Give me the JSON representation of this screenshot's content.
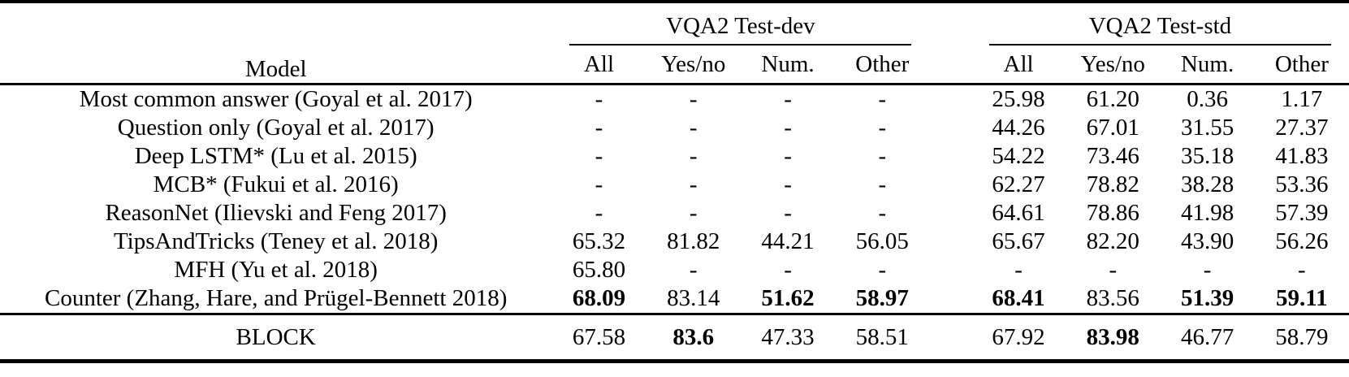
{
  "table": {
    "model_header": "Model",
    "groups": [
      {
        "label": "VQA2 Test-dev",
        "columns": [
          "All",
          "Yes/no",
          "Num.",
          "Other"
        ]
      },
      {
        "label": "VQA2 Test-std",
        "columns": [
          "All",
          "Yes/no",
          "Num.",
          "Other"
        ]
      }
    ],
    "rows": [
      {
        "model": "Most common answer (Goyal et al. 2017)",
        "values": [
          "-",
          "-",
          "-",
          "-",
          "25.98",
          "61.20",
          "0.36",
          "1.17"
        ],
        "bold": [
          false,
          false,
          false,
          false,
          false,
          false,
          false,
          false
        ]
      },
      {
        "model": "Question only (Goyal et al. 2017)",
        "values": [
          "-",
          "-",
          "-",
          "-",
          "44.26",
          "67.01",
          "31.55",
          "27.37"
        ],
        "bold": [
          false,
          false,
          false,
          false,
          false,
          false,
          false,
          false
        ]
      },
      {
        "model": "Deep LSTM* (Lu et al. 2015)",
        "values": [
          "-",
          "-",
          "-",
          "-",
          "54.22",
          "73.46",
          "35.18",
          "41.83"
        ],
        "bold": [
          false,
          false,
          false,
          false,
          false,
          false,
          false,
          false
        ]
      },
      {
        "model": "MCB* (Fukui et al. 2016)",
        "values": [
          "-",
          "-",
          "-",
          "-",
          "62.27",
          "78.82",
          "38.28",
          "53.36"
        ],
        "bold": [
          false,
          false,
          false,
          false,
          false,
          false,
          false,
          false
        ]
      },
      {
        "model": "ReasonNet (Ilievski and Feng 2017)",
        "values": [
          "-",
          "-",
          "-",
          "-",
          "64.61",
          "78.86",
          "41.98",
          "57.39"
        ],
        "bold": [
          false,
          false,
          false,
          false,
          false,
          false,
          false,
          false
        ]
      },
      {
        "model": "TipsAndTricks (Teney et al. 2018)",
        "values": [
          "65.32",
          "81.82",
          "44.21",
          "56.05",
          "65.67",
          "82.20",
          "43.90",
          "56.26"
        ],
        "bold": [
          false,
          false,
          false,
          false,
          false,
          false,
          false,
          false
        ]
      },
      {
        "model": "MFH (Yu et al. 2018)",
        "values": [
          "65.80",
          "-",
          "-",
          "-",
          "-",
          "-",
          "-",
          "-"
        ],
        "bold": [
          false,
          false,
          false,
          false,
          false,
          false,
          false,
          false
        ]
      },
      {
        "model": "Counter (Zhang, Hare, and Prügel-Bennett 2018)",
        "values": [
          "68.09",
          "83.14",
          "51.62",
          "58.97",
          "68.41",
          "83.56",
          "51.39",
          "59.11"
        ],
        "bold": [
          true,
          false,
          true,
          true,
          true,
          false,
          true,
          true
        ]
      }
    ],
    "footer_rows": [
      {
        "model": "BLOCK",
        "values": [
          "67.58",
          "83.6",
          "47.33",
          "58.51",
          "67.92",
          "83.98",
          "46.77",
          "58.79"
        ],
        "bold": [
          false,
          true,
          false,
          false,
          false,
          true,
          false,
          false
        ]
      }
    ]
  },
  "chart_data": {
    "type": "table",
    "title": "VQA2 results comparison",
    "column_groups": [
      "VQA2 Test-dev",
      "VQA2 Test-std"
    ],
    "columns": [
      "Model",
      "Test-dev All",
      "Test-dev Yes/no",
      "Test-dev Num.",
      "Test-dev Other",
      "Test-std All",
      "Test-std Yes/no",
      "Test-std Num.",
      "Test-std Other"
    ],
    "rows": [
      [
        "Most common answer (Goyal et al. 2017)",
        null,
        null,
        null,
        null,
        25.98,
        61.2,
        0.36,
        1.17
      ],
      [
        "Question only (Goyal et al. 2017)",
        null,
        null,
        null,
        null,
        44.26,
        67.01,
        31.55,
        27.37
      ],
      [
        "Deep LSTM* (Lu et al. 2015)",
        null,
        null,
        null,
        null,
        54.22,
        73.46,
        35.18,
        41.83
      ],
      [
        "MCB* (Fukui et al. 2016)",
        null,
        null,
        null,
        null,
        62.27,
        78.82,
        38.28,
        53.36
      ],
      [
        "ReasonNet (Ilievski and Feng 2017)",
        null,
        null,
        null,
        null,
        64.61,
        78.86,
        41.98,
        57.39
      ],
      [
        "TipsAndTricks (Teney et al. 2018)",
        65.32,
        81.82,
        44.21,
        56.05,
        65.67,
        82.2,
        43.9,
        56.26
      ],
      [
        "MFH (Yu et al. 2018)",
        65.8,
        null,
        null,
        null,
        null,
        null,
        null,
        null
      ],
      [
        "Counter (Zhang, Hare, and Prügel-Bennett 2018)",
        68.09,
        83.14,
        51.62,
        58.97,
        68.41,
        83.56,
        51.39,
        59.11
      ],
      [
        "BLOCK",
        67.58,
        83.6,
        47.33,
        58.51,
        67.92,
        83.98,
        46.77,
        58.79
      ]
    ]
  }
}
